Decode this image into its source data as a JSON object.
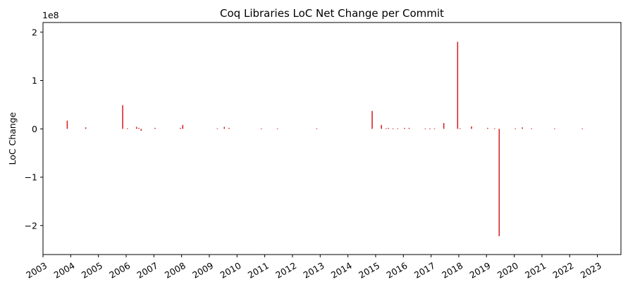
{
  "chart_data": {
    "type": "bar",
    "title": "Coq Libraries LoC Net Change per Commit",
    "xlabel": "",
    "ylabel": "LoC Change",
    "y_scale_label": "1e8",
    "ylim": [
      -2.6,
      2.2
    ],
    "xlim": [
      2003.0,
      2023.85
    ],
    "yticks": [
      2,
      1,
      0,
      -1,
      -2
    ],
    "ytick_labels": [
      "2",
      "1",
      "0",
      "−1",
      "−2"
    ],
    "xticks": [
      2003,
      2004,
      2005,
      2006,
      2007,
      2008,
      2009,
      2010,
      2011,
      2012,
      2013,
      2014,
      2015,
      2016,
      2017,
      2018,
      2019,
      2020,
      2021,
      2022,
      2023
    ],
    "xtick_labels": [
      "2003",
      "2004",
      "2005",
      "2006",
      "2007",
      "2008",
      "2009",
      "2010",
      "2011",
      "2012",
      "2013",
      "2014",
      "2015",
      "2016",
      "2017",
      "2018",
      "2019",
      "2020",
      "2021",
      "2022",
      "2023"
    ],
    "grid": false,
    "color": "#d62728",
    "series": [
      {
        "x": [
          "2003-11",
          "2004-07",
          "2005-11",
          "2006-01",
          "2006-05",
          "2006-06",
          "2006-07",
          "2007-01",
          "2007-12",
          "2008-01",
          "2009-04",
          "2009-07",
          "2009-09",
          "2010-11",
          "2011-06",
          "2012-11",
          "2014-11",
          "2015-03",
          "2015-05",
          "2015-06",
          "2015-08",
          "2015-10",
          "2016-01",
          "2016-03",
          "2016-10",
          "2016-12",
          "2017-02",
          "2017-06",
          "2017-12",
          "2018-01",
          "2018-06",
          "2019-01",
          "2019-04",
          "2019-06",
          "2020-01",
          "2020-04",
          "2020-08",
          "2021-06",
          "2022-06"
        ],
        "values": [
          0.17,
          0.03,
          0.49,
          0.01,
          0.04,
          0.02,
          -0.04,
          0.02,
          0.02,
          0.08,
          0.01,
          0.04,
          0.02,
          0.01,
          0.01,
          0.01,
          0.37,
          0.08,
          0.01,
          0.02,
          0.01,
          0.01,
          0.02,
          0.02,
          0.01,
          0.01,
          0.01,
          0.12,
          1.8,
          0.01,
          0.05,
          0.02,
          0.01,
          -2.22,
          0.01,
          0.03,
          0.01,
          0.01,
          0.01
        ]
      }
    ]
  }
}
